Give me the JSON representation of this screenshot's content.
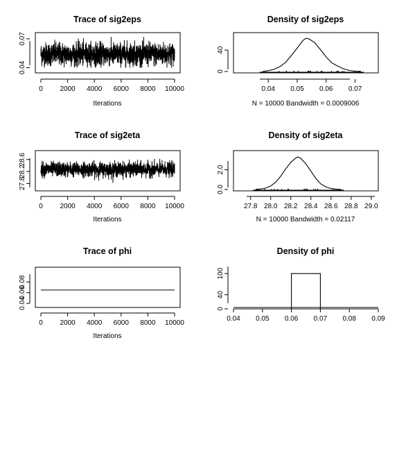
{
  "chart_data": [
    {
      "type": "line",
      "title": "Trace of sig2eps",
      "xlabel": "Iterations",
      "ylabel": "",
      "xlim": [
        0,
        10000
      ],
      "ylim": [
        0.036,
        0.075
      ],
      "x_ticks": [
        "0",
        "2000",
        "4000",
        "6000",
        "8000",
        "10000"
      ],
      "y_ticks": [
        "0.04",
        "0.07"
      ],
      "series": [
        {
          "n": 10000,
          "mean": 0.054,
          "sd": 0.006,
          "min": 0.04,
          "max": 0.072
        }
      ]
    },
    {
      "type": "line",
      "title": "Density of sig2eps",
      "xlabel": "N = 10000   Bandwidth = 0.0009006",
      "ylabel": "",
      "xlim": [
        0.028,
        0.078
      ],
      "ylim": [
        0,
        70
      ],
      "x_ticks": [
        "0.04",
        "0.05",
        "0.06",
        "0.07"
      ],
      "y_ticks": [
        "0",
        "40"
      ],
      "x": [
        0.038,
        0.04,
        0.042,
        0.044,
        0.046,
        0.048,
        0.05,
        0.052,
        0.053,
        0.054,
        0.056,
        0.058,
        0.06,
        0.062,
        0.063,
        0.064,
        0.066,
        0.068,
        0.07,
        0.072
      ],
      "y": [
        0,
        1.5,
        4,
        9,
        17,
        30,
        44,
        58,
        62,
        61,
        54,
        41,
        27,
        16,
        13,
        10,
        5,
        2,
        0.5,
        0
      ]
    },
    {
      "type": "line",
      "title": "Trace of sig2eta",
      "xlabel": "Iterations",
      "ylabel": "",
      "xlim": [
        0,
        10000
      ],
      "ylim": [
        27.6,
        28.85
      ],
      "x_ticks": [
        "0",
        "2000",
        "4000",
        "6000",
        "8000",
        "10000"
      ],
      "y_ticks": [
        "27.8",
        "28.2",
        "28.6"
      ],
      "series": [
        {
          "n": 10000,
          "mean": 28.27,
          "sd": 0.12,
          "min": 27.8,
          "max": 28.75
        }
      ]
    },
    {
      "type": "line",
      "title": "Density of sig2eta",
      "xlabel": "N = 10000   Bandwidth = 0.02117",
      "ylabel": "",
      "xlim": [
        27.63,
        29.07
      ],
      "ylim": [
        0,
        3.8
      ],
      "x_ticks": [
        "27.8",
        "28.0",
        "28.2",
        "28.4",
        "28.6",
        "28.8",
        "29.0"
      ],
      "y_ticks": [
        "0.0",
        "2.0"
      ],
      "x": [
        27.85,
        27.9,
        27.95,
        28.0,
        28.05,
        28.1,
        28.15,
        28.2,
        28.25,
        28.27,
        28.3,
        28.35,
        28.4,
        28.45,
        28.5,
        28.55,
        28.6,
        28.65,
        28.7
      ],
      "y": [
        0,
        0.05,
        0.14,
        0.35,
        0.75,
        1.35,
        2.1,
        2.75,
        3.2,
        3.3,
        3.15,
        2.6,
        1.85,
        1.1,
        0.55,
        0.25,
        0.1,
        0.03,
        0
      ]
    },
    {
      "type": "line",
      "title": "Trace of phi",
      "xlabel": "Iterations",
      "ylabel": "",
      "xlim": [
        0,
        10000
      ],
      "ylim": [
        0.035,
        0.105
      ],
      "x_ticks": [
        "0",
        "2000",
        "4000",
        "6000",
        "8000",
        "10000"
      ],
      "y_ticks": [
        "0.04",
        "0.06",
        "0.08"
      ],
      "series": [
        {
          "constant": 0.065
        }
      ]
    },
    {
      "type": "line",
      "title": "Density of phi",
      "xlabel": "",
      "ylabel": "",
      "xlim": [
        0.04,
        0.09
      ],
      "ylim": [
        0,
        120
      ],
      "x_ticks": [
        "0.04",
        "0.05",
        "0.06",
        "0.07",
        "0.08",
        "0.09"
      ],
      "y_ticks": [
        "0",
        "40",
        "100"
      ],
      "x": [
        0.04,
        0.06,
        0.06,
        0.07,
        0.07,
        0.09
      ],
      "y": [
        0,
        0,
        100,
        100,
        0,
        0
      ]
    }
  ]
}
